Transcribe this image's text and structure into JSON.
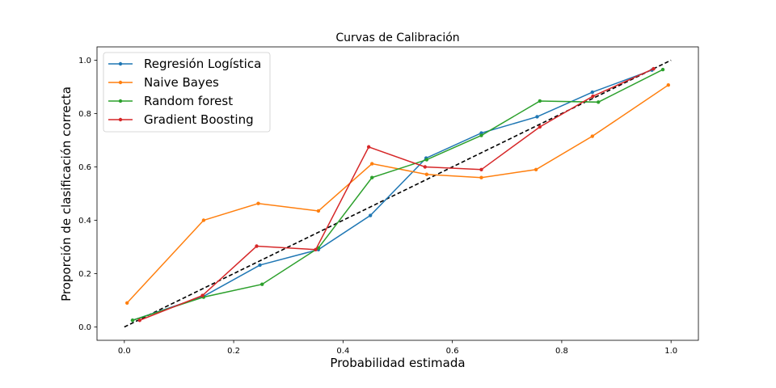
{
  "chart_data": {
    "type": "line",
    "title": "Curvas de Calibración",
    "xlabel": "Probabilidad estimada",
    "ylabel": "Proporción de clasificación correcta",
    "xlim": [
      -0.05,
      1.05
    ],
    "ylim": [
      -0.05,
      1.05
    ],
    "xticks": [
      0.0,
      0.2,
      0.4,
      0.6,
      0.8,
      1.0
    ],
    "yticks": [
      0.0,
      0.2,
      0.4,
      0.6,
      0.8,
      1.0
    ],
    "xtick_labels": [
      "0.0",
      "0.2",
      "0.4",
      "0.6",
      "0.8",
      "1.0"
    ],
    "ytick_labels": [
      "0.0",
      "0.2",
      "0.4",
      "0.6",
      "0.8",
      "1.0"
    ],
    "grid": false,
    "legend_position": "top-left",
    "reference_line": {
      "x": [
        0,
        1
      ],
      "y": [
        0,
        1
      ],
      "color": "#000000",
      "style": "dashed"
    },
    "series": [
      {
        "name": "Regresión Logística",
        "color": "#1f77b4",
        "x": [
          0.015,
          0.145,
          0.248,
          0.355,
          0.45,
          0.552,
          0.653,
          0.755,
          0.856,
          0.965
        ],
        "y": [
          0.025,
          0.115,
          0.232,
          0.29,
          0.418,
          0.633,
          0.727,
          0.788,
          0.88,
          0.963
        ]
      },
      {
        "name": "Naive Bayes",
        "color": "#ff7f0e",
        "x": [
          0.005,
          0.145,
          0.245,
          0.355,
          0.453,
          0.553,
          0.653,
          0.753,
          0.856,
          0.995
        ],
        "y": [
          0.09,
          0.4,
          0.463,
          0.435,
          0.612,
          0.572,
          0.56,
          0.59,
          0.715,
          0.907
        ]
      },
      {
        "name": "Random forest",
        "color": "#2ca02c",
        "x": [
          0.015,
          0.145,
          0.252,
          0.355,
          0.453,
          0.553,
          0.653,
          0.76,
          0.867,
          0.985
        ],
        "y": [
          0.025,
          0.112,
          0.16,
          0.296,
          0.56,
          0.627,
          0.718,
          0.847,
          0.843,
          0.965
        ]
      },
      {
        "name": "Gradient Boosting",
        "color": "#d62728",
        "x": [
          0.028,
          0.143,
          0.242,
          0.35,
          0.447,
          0.55,
          0.653,
          0.76,
          0.857,
          0.968
        ],
        "y": [
          0.025,
          0.118,
          0.303,
          0.29,
          0.675,
          0.6,
          0.59,
          0.75,
          0.865,
          0.968
        ]
      }
    ]
  }
}
